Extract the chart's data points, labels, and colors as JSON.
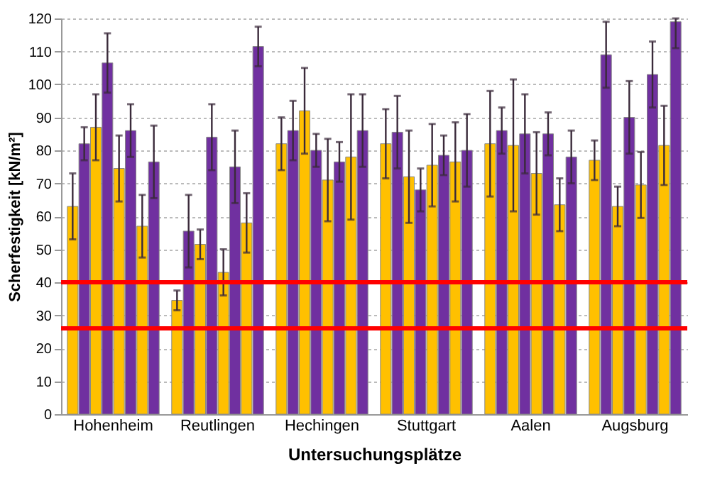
{
  "chart_data": {
    "type": "bar",
    "xlabel": "Untersuchungsplätze",
    "ylabel": "Scherfestigkeit [kN/m²]",
    "categories": [
      "Hohenheim",
      "Reutlingen",
      "Hechingen",
      "Stuttgart",
      "Aalen",
      "Augsburg"
    ],
    "series": [
      {
        "color": "#ffc000",
        "values": [
          63,
          34.5,
          82,
          82,
          82,
          77
        ],
        "errors": [
          10,
          3,
          8,
          10.5,
          16,
          6
        ]
      },
      {
        "color": "#7030a0",
        "values": [
          82,
          55.5,
          86,
          85.5,
          86,
          109
        ],
        "errors": [
          5,
          11,
          9,
          11,
          7,
          10
        ]
      },
      {
        "color": "#ffc000",
        "values": [
          87,
          51.5,
          92,
          72,
          81.5,
          63
        ],
        "errors": [
          10,
          4.5,
          13,
          14,
          20,
          6
        ]
      },
      {
        "color": "#7030a0",
        "values": [
          106.5,
          84,
          80,
          68,
          85,
          90
        ],
        "errors": [
          9,
          10,
          5,
          6.5,
          12,
          11
        ]
      },
      {
        "color": "#ffc000",
        "values": [
          74.5,
          43,
          71,
          75.5,
          73,
          69.5
        ],
        "errors": [
          10,
          7,
          12.5,
          12.5,
          12.5,
          10
        ]
      },
      {
        "color": "#7030a0",
        "values": [
          86,
          75,
          76.5,
          78.5,
          85,
          103
        ],
        "errors": [
          8,
          11,
          6,
          6,
          6.5,
          10
        ]
      },
      {
        "color": "#ffc000",
        "values": [
          57,
          58,
          78,
          76.5,
          63.5,
          81.5
        ],
        "errors": [
          9.5,
          9,
          19,
          12,
          8,
          12
        ]
      },
      {
        "color": "#7030a0",
        "values": [
          76.5,
          111.5,
          86,
          80,
          78,
          119
        ],
        "errors": [
          11,
          6,
          11,
          11,
          8,
          [
            111,
            120
          ]
        ]
      }
    ],
    "ylim": [
      0,
      120
    ],
    "yticks": [
      0,
      10,
      20,
      30,
      40,
      50,
      60,
      70,
      80,
      90,
      100,
      110,
      120
    ],
    "grid": "y",
    "legend": false,
    "ref_lines": [
      {
        "axis": "y",
        "value": 40,
        "color": "#ff0000"
      },
      {
        "axis": "y",
        "value": 26,
        "color": "#ff0000"
      }
    ]
  }
}
